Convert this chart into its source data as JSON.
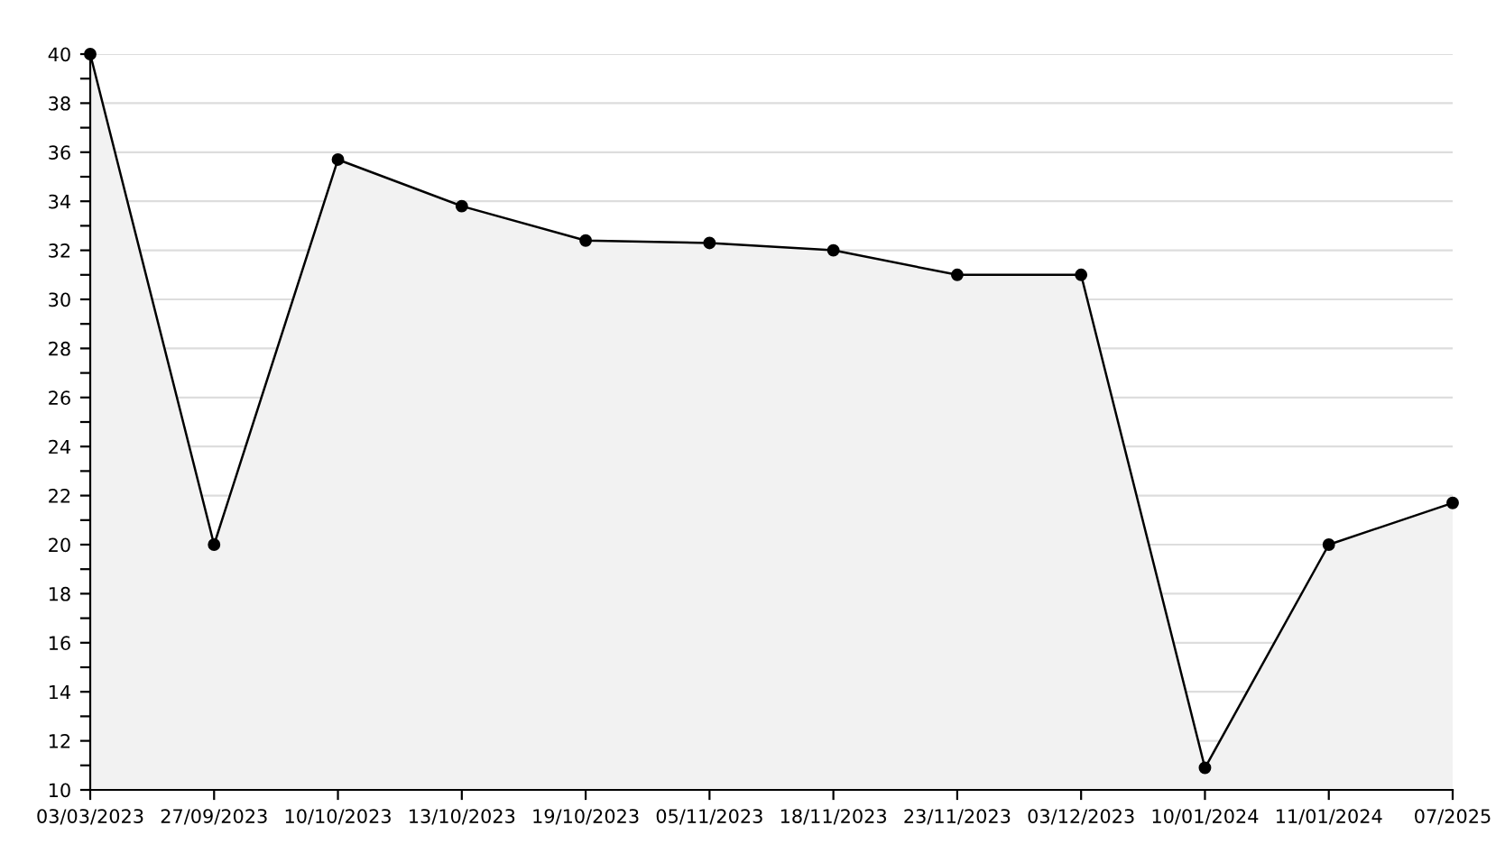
{
  "chart_data": {
    "type": "area",
    "categories": [
      "03/03/2023",
      "27/09/2023",
      "10/10/2023",
      "13/10/2023",
      "19/10/2023",
      "05/11/2023",
      "18/11/2023",
      "23/11/2023",
      "03/12/2023",
      "10/01/2024",
      "11/01/2024",
      "07/2025"
    ],
    "series": [
      {
        "color": "#000000",
        "values": [
          40,
          20,
          35.7,
          33.8,
          32.4,
          32.3,
          32.0,
          31.0,
          31.0,
          10.9,
          20.0,
          21.7
        ]
      }
    ],
    "ylim": [
      10,
      40
    ],
    "yticks": [
      10,
      {
        "value": 11,
        "label": null
      },
      12,
      {
        "value": 13,
        "label": null
      },
      14,
      {
        "value": 15,
        "label": null
      },
      16,
      {
        "value": 17,
        "label": null
      },
      18,
      {
        "value": 19,
        "label": null
      },
      20,
      {
        "value": 21,
        "label": null
      },
      22,
      {
        "value": 23,
        "label": null
      },
      24,
      {
        "value": 25,
        "label": null
      },
      26,
      {
        "value": 27,
        "label": null
      },
      28,
      {
        "value": 29,
        "label": null
      },
      30,
      {
        "value": 31,
        "label": null
      },
      32,
      {
        "value": 33,
        "label": null
      },
      34,
      {
        "value": 35,
        "label": null
      },
      36,
      {
        "value": 37,
        "label": null
      },
      38,
      {
        "value": 39,
        "label": null
      },
      40
    ],
    "grid": "y",
    "marker": "circle",
    "line_style": "solid"
  }
}
